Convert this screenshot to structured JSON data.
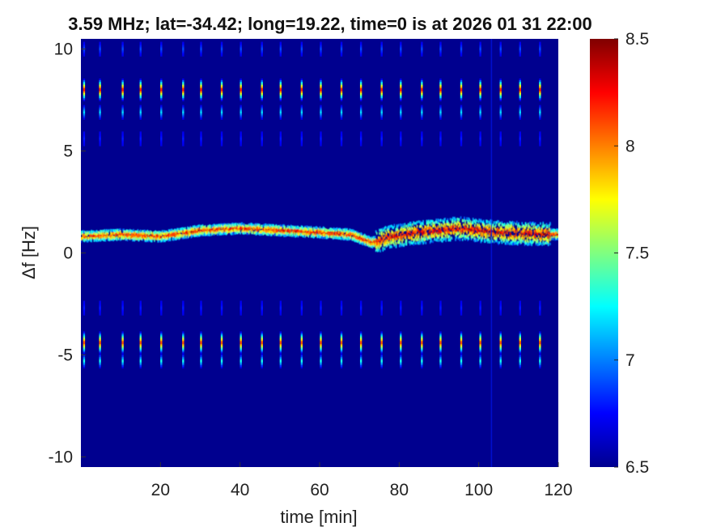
{
  "chart_data": {
    "type": "heatmap",
    "title": "3.59 MHz;  lat=-34.42; long=19.22, time=0 is at 2026 01 31 22:00",
    "xlabel": "time [min]",
    "ylabel": "Δf [Hz]",
    "xlim": [
      0,
      120
    ],
    "ylim": [
      -10.5,
      10.5
    ],
    "x_ticks": [
      20,
      40,
      60,
      80,
      100,
      120
    ],
    "x_tick_labels": [
      "20",
      "40",
      "60",
      "80",
      "100",
      "120"
    ],
    "y_ticks": [
      -10,
      -5,
      0,
      5,
      10
    ],
    "y_tick_labels": [
      "-10",
      "-5",
      "0",
      "5",
      "10"
    ],
    "colorbar": {
      "range": [
        6.5,
        8.5
      ],
      "ticks": [
        6.5,
        7,
        7.5,
        8,
        8.5
      ],
      "tick_labels": [
        "6.5",
        "7",
        "7.5",
        "8",
        "8.5"
      ],
      "colormap": "jet"
    },
    "features": {
      "pulse_times_min": [
        0.8,
        4.8,
        10.5,
        15.0,
        20.2,
        25.7,
        30.2,
        35.4,
        40.2,
        45.5,
        50.2,
        55.5,
        60.3,
        65.5,
        70.4,
        75.6,
        80.4,
        85.7,
        90.4,
        95.6,
        100.4,
        105.5,
        110.4,
        115.4
      ],
      "pulse_bands_hz": [
        {
          "center": 8.0,
          "level": 8.3
        },
        {
          "center": 6.9,
          "level": 7.2
        },
        {
          "center": 10.0,
          "level": 6.9
        },
        {
          "center": 5.6,
          "level": 6.8
        },
        {
          "center": -4.4,
          "level": 8.2
        },
        {
          "center": -5.3,
          "level": 7.3
        },
        {
          "center": -2.7,
          "level": 6.8
        }
      ],
      "carrier_trace": {
        "time_min": [
          0,
          10,
          20,
          30,
          40,
          50,
          60,
          68,
          73,
          78,
          85,
          95,
          105,
          120
        ],
        "df_hz": [
          0.8,
          0.9,
          0.8,
          1.1,
          1.2,
          1.1,
          1.0,
          0.9,
          0.5,
          0.8,
          1.0,
          1.2,
          1.0,
          0.9
        ],
        "level": 8.0
      },
      "background_level": 6.5
    }
  }
}
